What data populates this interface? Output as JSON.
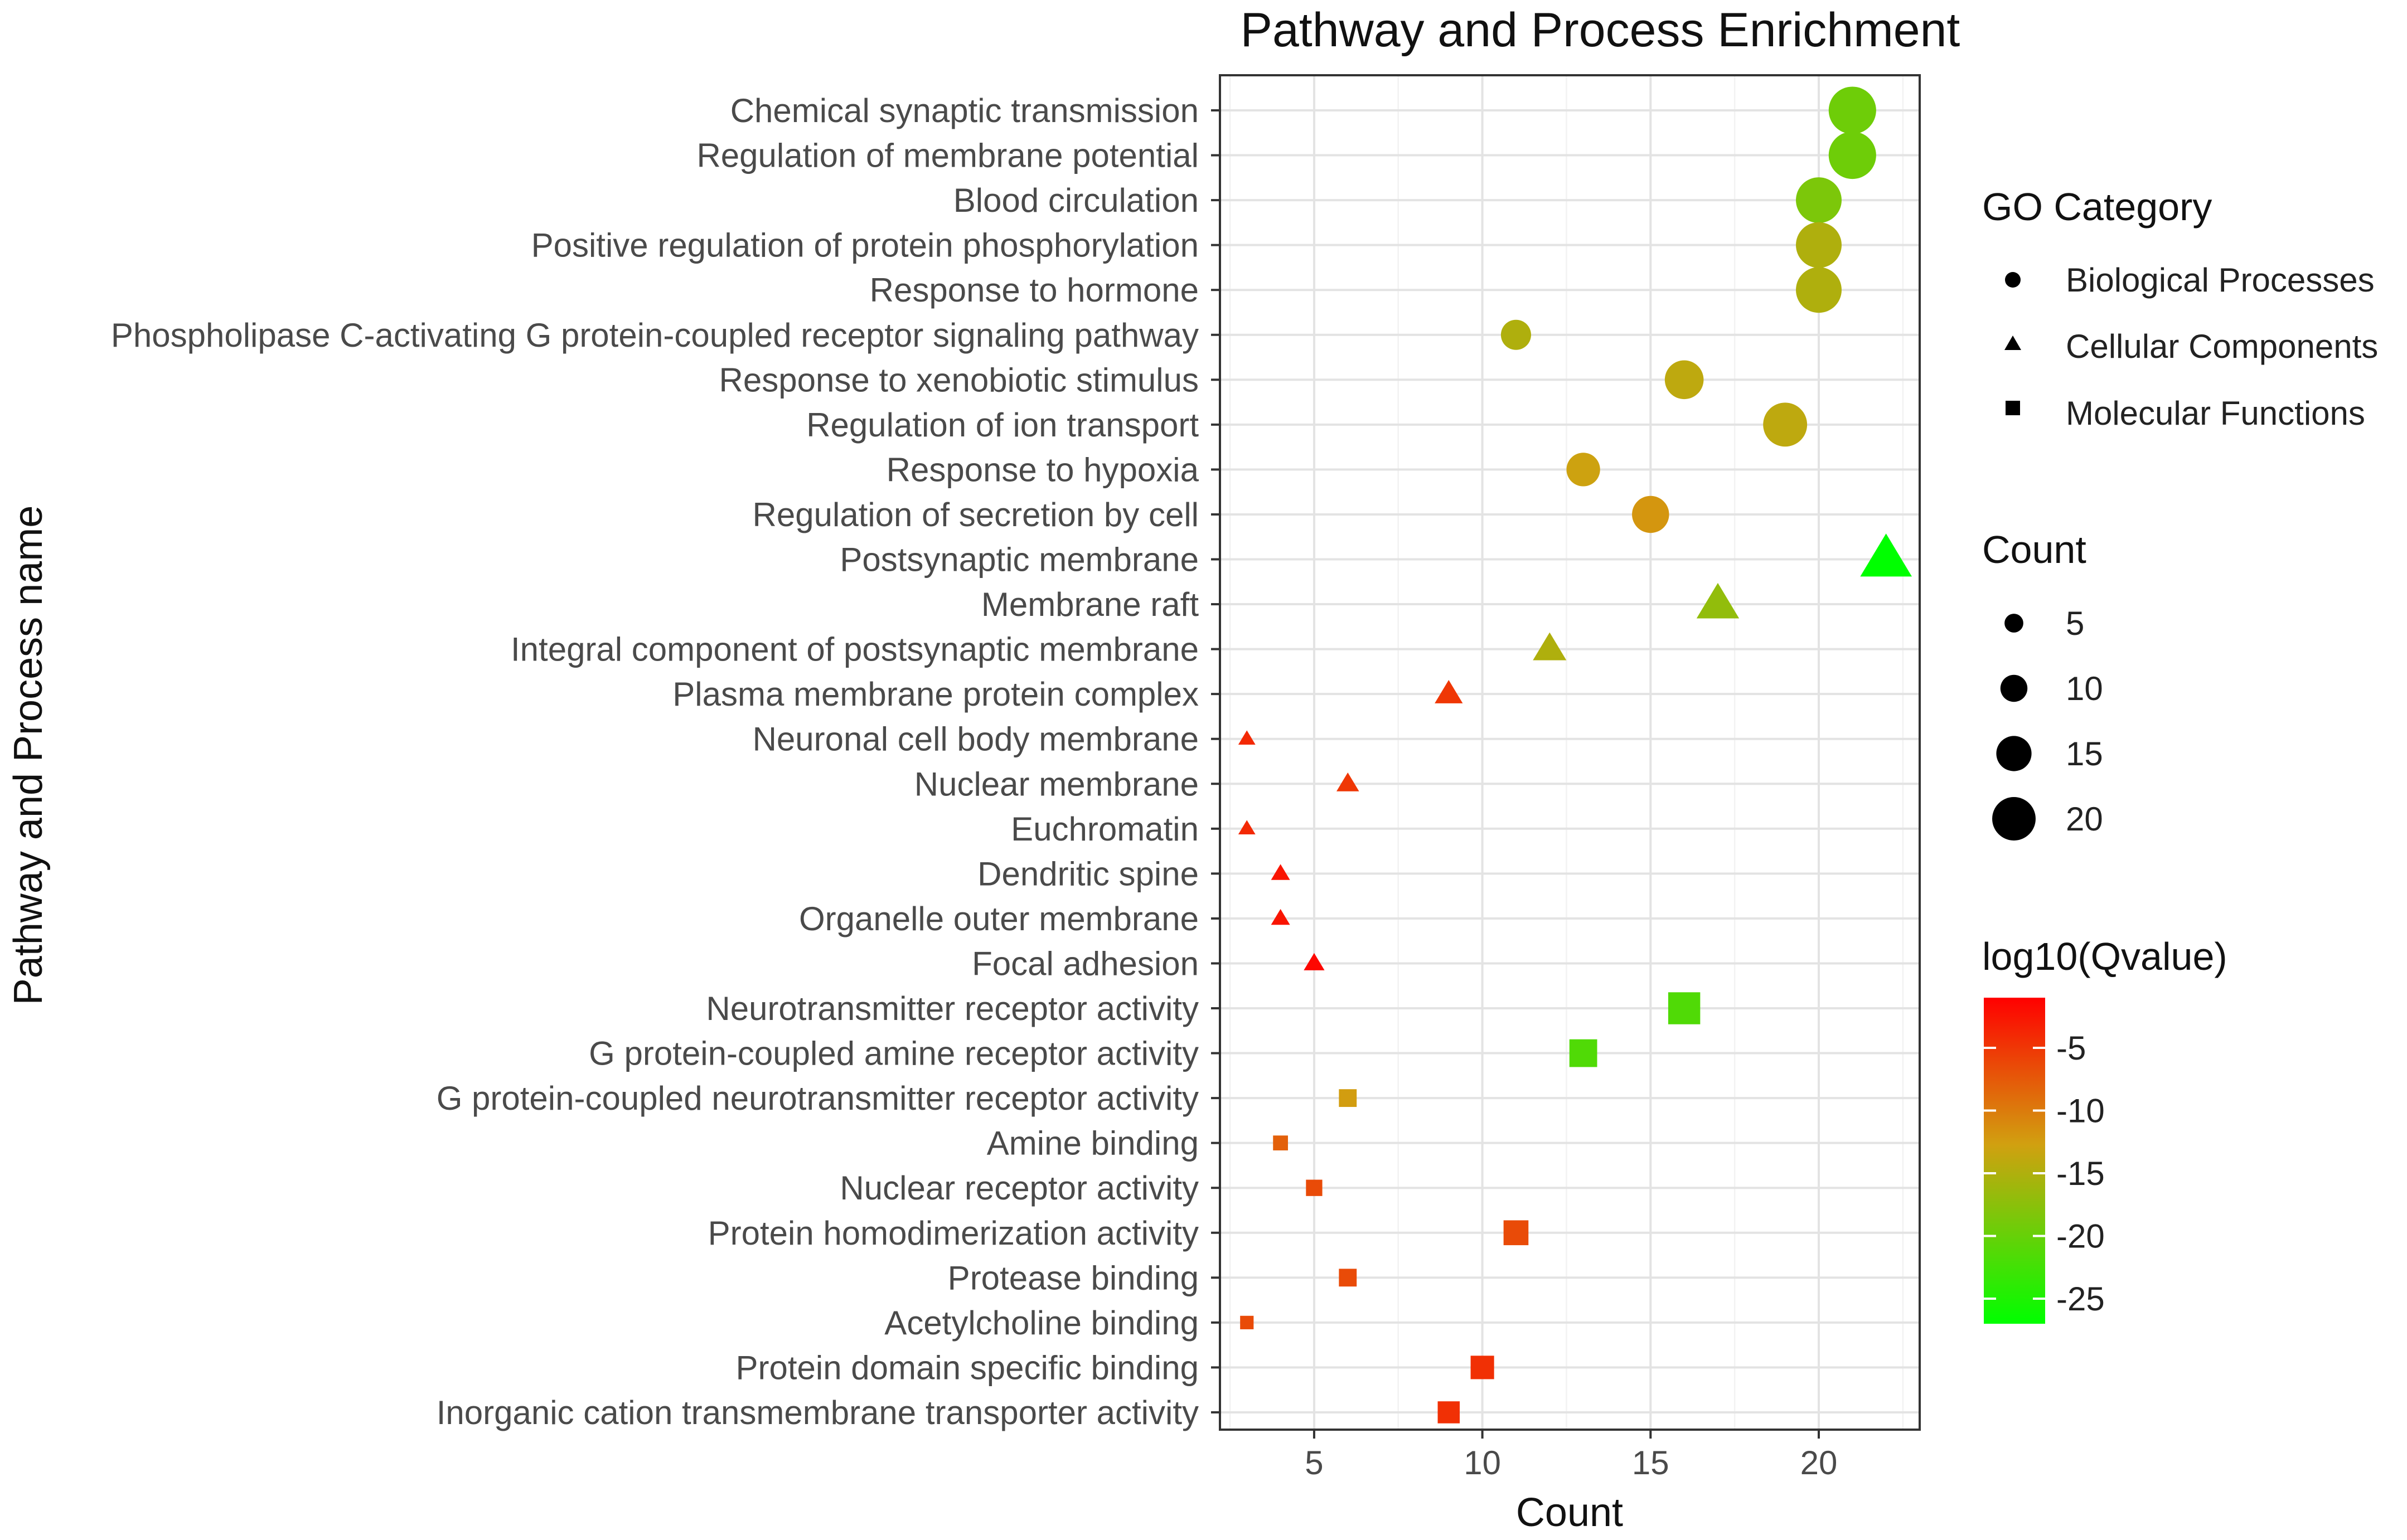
{
  "chart_data": {
    "type": "scatter",
    "title": "Pathway and Process Enrichment",
    "xlabel": "Count",
    "ylabel": "Pathway and Process name",
    "xlim": [
      2.2,
      23
    ],
    "xticks": [
      5,
      10,
      15,
      20
    ],
    "grid": true,
    "legend_placement": "right",
    "shape_legend": {
      "title": "GO Category",
      "entries": [
        {
          "label": "Biological Processes",
          "shape": "circle"
        },
        {
          "label": "Cellular Components",
          "shape": "triangle"
        },
        {
          "label": "Molecular Functions",
          "shape": "square"
        }
      ]
    },
    "size_legend": {
      "title": "Count",
      "values": [
        5,
        10,
        15,
        20
      ]
    },
    "color_legend": {
      "title": "log10(Qvalue)",
      "ticks": [
        -5,
        -10,
        -15,
        -20,
        -25
      ],
      "range": [
        -27,
        -1
      ],
      "low_color": "#00ff00",
      "mid_color": "#d1a010",
      "high_color": "#ff0000"
    },
    "points": [
      {
        "term": "Chemical synaptic transmission",
        "category": "Biological Processes",
        "count": 21,
        "log10q": -19.5
      },
      {
        "term": "Regulation of membrane potential",
        "category": "Biological Processes",
        "count": 21,
        "log10q": -19.5
      },
      {
        "term": "Blood circulation",
        "category": "Biological Processes",
        "count": 20,
        "log10q": -18.5
      },
      {
        "term": "Positive regulation of protein phosphorylation",
        "category": "Biological Processes",
        "count": 20,
        "log10q": -15
      },
      {
        "term": "Response to hormone",
        "category": "Biological Processes",
        "count": 20,
        "log10q": -15
      },
      {
        "term": "Phospholipase C-activating G protein-coupled receptor signaling pathway",
        "category": "Biological Processes",
        "count": 11,
        "log10q": -15
      },
      {
        "term": "Response to xenobiotic stimulus",
        "category": "Biological Processes",
        "count": 16,
        "log10q": -14
      },
      {
        "term": "Regulation of ion transport",
        "category": "Biological Processes",
        "count": 19,
        "log10q": -14
      },
      {
        "term": "Response to hypoxia",
        "category": "Biological Processes",
        "count": 13,
        "log10q": -13
      },
      {
        "term": "Regulation of secretion by cell",
        "category": "Biological Processes",
        "count": 15,
        "log10q": -12
      },
      {
        "term": "Postsynaptic membrane",
        "category": "Cellular Components",
        "count": 22,
        "log10q": -27
      },
      {
        "term": "Membrane raft",
        "category": "Cellular Components",
        "count": 17,
        "log10q": -17
      },
      {
        "term": "Integral component of postsynaptic membrane",
        "category": "Cellular Components",
        "count": 12,
        "log10q": -15
      },
      {
        "term": "Plasma membrane protein complex",
        "category": "Cellular Components",
        "count": 9,
        "log10q": -5
      },
      {
        "term": "Neuronal cell body membrane",
        "category": "Cellular Components",
        "count": 3,
        "log10q": -4
      },
      {
        "term": "Nuclear membrane",
        "category": "Cellular Components",
        "count": 6,
        "log10q": -5
      },
      {
        "term": "Euchromatin",
        "category": "Cellular Components",
        "count": 3,
        "log10q": -4
      },
      {
        "term": "Dendritic spine",
        "category": "Cellular Components",
        "count": 4,
        "log10q": -2.5
      },
      {
        "term": "Organelle outer membrane",
        "category": "Cellular Components",
        "count": 4,
        "log10q": -2.5
      },
      {
        "term": "Focal adhesion",
        "category": "Cellular Components",
        "count": 5,
        "log10q": -1.5
      },
      {
        "term": "Neurotransmitter receptor activity",
        "category": "Molecular Functions",
        "count": 16,
        "log10q": -21.5
      },
      {
        "term": "G protein-coupled amine receptor activity",
        "category": "Molecular Functions",
        "count": 13,
        "log10q": -21.5
      },
      {
        "term": "G protein-coupled neurotransmitter receptor activity",
        "category": "Molecular Functions",
        "count": 6,
        "log10q": -12.5
      },
      {
        "term": "Amine binding",
        "category": "Molecular Functions",
        "count": 4,
        "log10q": -8
      },
      {
        "term": "Nuclear receptor activity",
        "category": "Molecular Functions",
        "count": 5,
        "log10q": -6.5
      },
      {
        "term": "Protein homodimerization activity",
        "category": "Molecular Functions",
        "count": 11,
        "log10q": -6.5
      },
      {
        "term": "Protease binding",
        "category": "Molecular Functions",
        "count": 6,
        "log10q": -6.5
      },
      {
        "term": "Acetylcholine binding",
        "category": "Molecular Functions",
        "count": 3,
        "log10q": -6.5
      },
      {
        "term": "Protein domain specific binding",
        "category": "Molecular Functions",
        "count": 10,
        "log10q": -4.5
      },
      {
        "term": "Inorganic cation transmembrane transporter activity",
        "category": "Molecular Functions",
        "count": 9,
        "log10q": -4.5
      }
    ]
  }
}
